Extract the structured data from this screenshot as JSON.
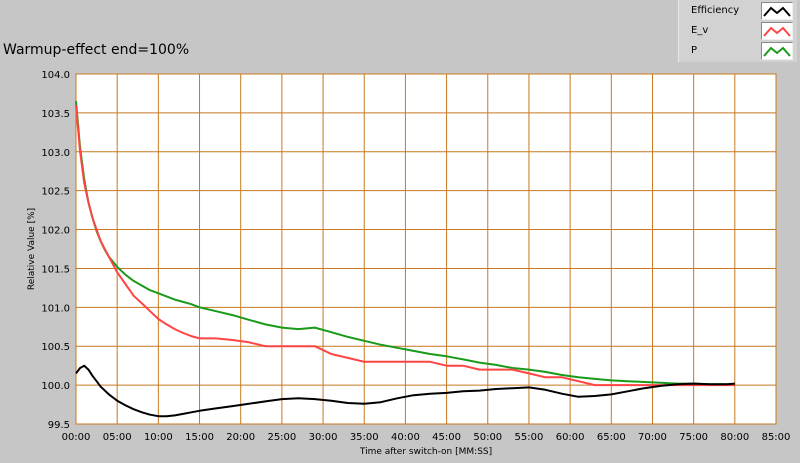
{
  "chart_data": {
    "type": "line",
    "title": "Warmup-effect end=100%",
    "xlabel": "Time after switch-on [MM:SS]",
    "ylabel": "Relative Value [%]",
    "xlim": [
      0,
      85
    ],
    "ylim": [
      99.5,
      104.0
    ],
    "x_ticks": [
      "00:00",
      "05:00",
      "10:00",
      "15:00",
      "20:00",
      "25:00",
      "30:00",
      "35:00",
      "40:00",
      "45:00",
      "50:00",
      "55:00",
      "60:00",
      "65:00",
      "70:00",
      "75:00",
      "80:00",
      "85:00"
    ],
    "y_ticks": [
      "104.0",
      "103.5",
      "103.0",
      "102.5",
      "102.0",
      "101.5",
      "101.0",
      "100.5",
      "100.0",
      "99.5"
    ],
    "grid": true,
    "legend_position": "top-right",
    "series": [
      {
        "name": "Efficiency",
        "color": "#000000",
        "x": [
          0,
          0.5,
          1,
          1.5,
          2,
          2.5,
          3,
          4,
          5,
          6,
          7,
          8,
          9,
          10,
          11,
          12,
          13,
          14,
          15,
          17,
          19,
          21,
          23,
          25,
          27,
          29,
          31,
          33,
          35,
          37,
          39,
          41,
          43,
          45,
          47,
          49,
          51,
          53,
          55,
          57,
          59,
          61,
          63,
          65,
          67,
          69,
          71,
          73,
          75,
          77,
          79,
          80
        ],
        "y": [
          100.15,
          100.22,
          100.25,
          100.2,
          100.12,
          100.05,
          99.98,
          99.88,
          99.8,
          99.74,
          99.69,
          99.65,
          99.62,
          99.6,
          99.6,
          99.61,
          99.63,
          99.65,
          99.67,
          99.7,
          99.73,
          99.76,
          99.79,
          99.82,
          99.83,
          99.82,
          99.8,
          99.77,
          99.76,
          99.78,
          99.83,
          99.87,
          99.89,
          99.9,
          99.92,
          99.93,
          99.95,
          99.96,
          99.97,
          99.94,
          99.89,
          99.85,
          99.86,
          99.88,
          99.92,
          99.96,
          99.99,
          100.01,
          100.02,
          100.01,
          100.01,
          100.02
        ]
      },
      {
        "name": "E_v",
        "color": "#ff4444",
        "x": [
          0,
          0.5,
          1,
          1.5,
          2,
          2.5,
          3,
          3.5,
          4,
          5,
          6,
          7,
          8,
          9,
          10,
          11,
          12,
          13,
          14,
          15,
          17,
          19,
          21,
          23,
          25,
          27,
          29,
          31,
          33,
          35,
          37,
          39,
          41,
          43,
          45,
          47,
          49,
          51,
          53,
          55,
          57,
          59,
          61,
          63,
          65,
          67,
          69,
          71,
          73,
          75,
          77,
          79,
          80
        ],
        "y": [
          103.6,
          103.0,
          102.6,
          102.35,
          102.15,
          102.0,
          101.85,
          101.75,
          101.65,
          101.45,
          101.3,
          101.15,
          101.05,
          100.95,
          100.85,
          100.78,
          100.72,
          100.67,
          100.63,
          100.6,
          100.6,
          100.58,
          100.55,
          100.5,
          100.5,
          100.5,
          100.5,
          100.4,
          100.35,
          100.3,
          100.3,
          100.3,
          100.3,
          100.3,
          100.25,
          100.25,
          100.2,
          100.2,
          100.2,
          100.15,
          100.1,
          100.1,
          100.05,
          100.0,
          100.0,
          100.0,
          100.0,
          100.0,
          100.0,
          100.0,
          100.0,
          100.0,
          100.0
        ]
      },
      {
        "name": "P",
        "color": "#1a9a1a",
        "x": [
          0,
          0.5,
          1,
          1.5,
          2,
          2.5,
          3,
          3.5,
          4,
          5,
          6,
          7,
          8,
          9,
          10,
          11,
          12,
          13,
          14,
          15,
          17,
          19,
          21,
          23,
          25,
          27,
          29,
          31,
          33,
          35,
          37,
          39,
          41,
          43,
          45,
          47,
          49,
          51,
          53,
          55,
          57,
          59,
          61,
          63,
          65,
          67,
          69,
          71,
          73,
          75,
          77,
          79,
          80
        ],
        "y": [
          103.65,
          103.05,
          102.65,
          102.35,
          102.15,
          101.98,
          101.85,
          101.74,
          101.65,
          101.52,
          101.42,
          101.34,
          101.28,
          101.22,
          101.18,
          101.14,
          101.1,
          101.07,
          101.04,
          101.0,
          100.95,
          100.9,
          100.84,
          100.78,
          100.74,
          100.72,
          100.74,
          100.68,
          100.62,
          100.57,
          100.52,
          100.48,
          100.44,
          100.4,
          100.37,
          100.33,
          100.29,
          100.26,
          100.22,
          100.2,
          100.17,
          100.13,
          100.1,
          100.08,
          100.06,
          100.05,
          100.04,
          100.03,
          100.02,
          100.02,
          100.01,
          100.01,
          100.0
        ]
      }
    ]
  }
}
